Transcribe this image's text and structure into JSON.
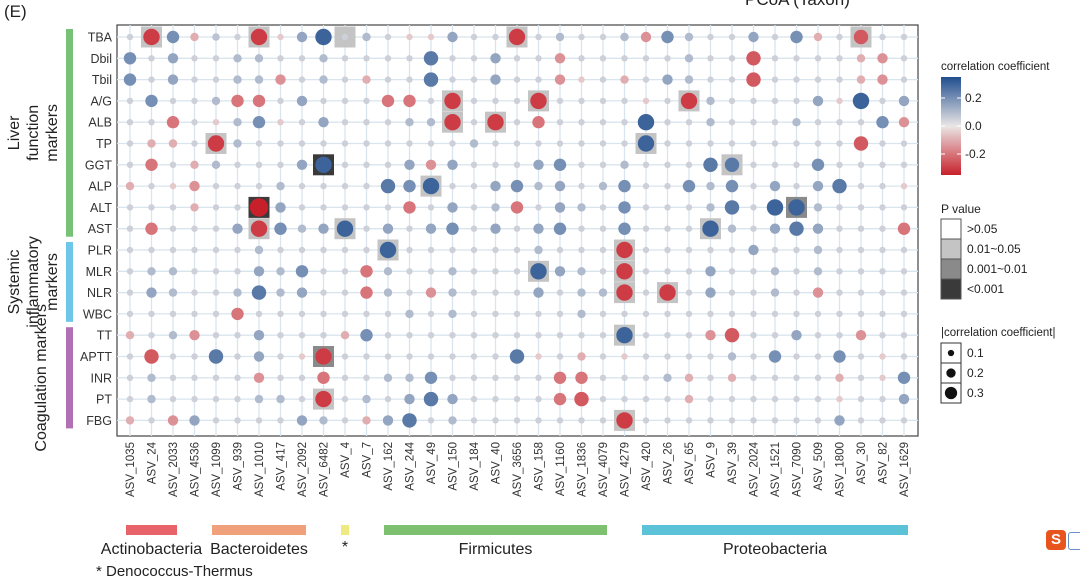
{
  "panel_label": "(E)",
  "corner_text": "PCoA (Taxon)",
  "footnote": "* Denococcus-Thermus",
  "chart_data": {
    "type": "heatmap",
    "rows": [
      "TBA",
      "Dbil",
      "Tbil",
      "A/G",
      "ALB",
      "TP",
      "GGT",
      "ALP",
      "ALT",
      "AST",
      "PLR",
      "MLR",
      "NLR",
      "WBC",
      "TT",
      "APTT",
      "INR",
      "PT",
      "FBG"
    ],
    "cols": [
      "ASV_1035",
      "ASV_24",
      "ASV_2033",
      "ASV_4536",
      "ASV_1099",
      "ASV_939",
      "ASV_1010",
      "ASV_417",
      "ASV_2092",
      "ASV_6482",
      "ASV_4",
      "ASV_7",
      "ASV_162",
      "ASV_244",
      "ASV_49",
      "ASV_150",
      "ASV_184",
      "ASV_40",
      "ASV_3656",
      "ASV_158",
      "ASV_1160",
      "ASV_1836",
      "ASV_4079",
      "ASV_4279",
      "ASV_420",
      "ASV_26",
      "ASV_65",
      "ASV_9",
      "ASV_39",
      "ASV_2024",
      "ASV_1521",
      "ASV_7090",
      "ASV_509",
      "ASV_1800",
      "ASV_30",
      "ASV_82",
      "ASV_1629"
    ],
    "values": [
      [
        0.05,
        -0.3,
        0.2,
        -0.1,
        0.08,
        0.05,
        -0.3,
        -0.05,
        0.15,
        0.3,
        0.05,
        0.1,
        0.05,
        -0.05,
        -0.05,
        0.15,
        0.05,
        0.05,
        -0.3,
        0.05,
        0.1,
        0.05,
        0.05,
        0.1,
        -0.15,
        0.2,
        0.1,
        0.05,
        0.05,
        0.15,
        0.05,
        0.2,
        -0.1,
        0.05,
        -0.25,
        0.05,
        0.05
      ],
      [
        0.2,
        0.05,
        0.15,
        0.05,
        0.05,
        0.1,
        0.1,
        0.05,
        0.05,
        0.1,
        0.05,
        0.05,
        0.05,
        0.05,
        0.25,
        0.05,
        0.05,
        0.15,
        0.05,
        0.05,
        -0.15,
        0.05,
        0.05,
        0.05,
        0.05,
        0.05,
        0.1,
        0.05,
        0.05,
        -0.25,
        0.05,
        0.05,
        0.05,
        0.05,
        -0.1,
        -0.15,
        0.05
      ],
      [
        0.2,
        0.05,
        0.15,
        0.05,
        0.05,
        0.1,
        0.1,
        -0.15,
        0.05,
        0.1,
        0.05,
        -0.1,
        0.05,
        0.05,
        0.25,
        0.05,
        0.05,
        0.15,
        0.05,
        0.05,
        -0.15,
        -0.05,
        0.05,
        -0.1,
        0.05,
        0.15,
        0.1,
        0.05,
        0.05,
        -0.25,
        0.05,
        0.05,
        0.05,
        0.05,
        -0.1,
        -0.15,
        0.05
      ],
      [
        0.05,
        0.2,
        0.05,
        0.05,
        0.1,
        -0.2,
        -0.2,
        0.05,
        0.15,
        0.05,
        0.05,
        0.05,
        -0.2,
        -0.2,
        0.05,
        -0.3,
        0.05,
        0.05,
        0.05,
        -0.3,
        0.05,
        0.05,
        0.05,
        0.05,
        -0.05,
        0.05,
        -0.3,
        0.1,
        0.05,
        0.05,
        0.05,
        0.05,
        0.15,
        -0.05,
        0.3,
        0.05,
        0.15
      ],
      [
        0.05,
        0.05,
        -0.2,
        0.05,
        -0.05,
        0.1,
        0.2,
        -0.05,
        0.05,
        0.15,
        0.05,
        0.05,
        0.05,
        0.1,
        0.1,
        -0.3,
        0.05,
        -0.3,
        0.05,
        -0.2,
        0.05,
        0.05,
        0.05,
        0.05,
        0.3,
        0.05,
        0.05,
        0.1,
        0.05,
        0.05,
        0.05,
        0.1,
        0.05,
        0.05,
        0.05,
        0.2,
        -0.15
      ],
      [
        0.05,
        -0.1,
        -0.1,
        0.05,
        -0.3,
        0.1,
        0.05,
        0.05,
        0.05,
        0.05,
        0.05,
        0.05,
        0.05,
        0.05,
        0.05,
        0.05,
        0.1,
        0.05,
        0.05,
        0.05,
        0.05,
        0.05,
        0.05,
        0.05,
        0.3,
        0.05,
        0.05,
        0.05,
        0.05,
        0.05,
        0.05,
        0.05,
        0.05,
        0.05,
        -0.25,
        0.05,
        0.05
      ],
      [
        0.05,
        -0.2,
        0.05,
        -0.1,
        0.1,
        0.05,
        0.05,
        0.05,
        0.15,
        0.3,
        0.05,
        0.05,
        0.05,
        0.15,
        -0.15,
        0.15,
        0.05,
        0.05,
        0.05,
        0.15,
        0.2,
        0.05,
        0.05,
        0.1,
        0.05,
        0.05,
        0.05,
        0.25,
        0.25,
        0.05,
        0.05,
        0.05,
        0.2,
        0.05,
        0.05,
        0.05,
        0.05
      ],
      [
        -0.1,
        0.05,
        -0.05,
        -0.15,
        0.05,
        0.05,
        0.05,
        0.1,
        0.05,
        0.05,
        0.05,
        0.05,
        0.25,
        0.2,
        0.3,
        0.05,
        0.05,
        0.15,
        0.2,
        0.1,
        0.15,
        0.05,
        0.1,
        0.2,
        0.05,
        0.05,
        0.2,
        0.1,
        0.2,
        0.05,
        0.15,
        0.05,
        0.15,
        0.25,
        0.05,
        0.05,
        -0.05
      ],
      [
        0.05,
        0.05,
        0.05,
        -0.1,
        0.05,
        0.05,
        -0.35,
        0.15,
        0.05,
        0.05,
        0.05,
        0.05,
        0.05,
        -0.2,
        0.05,
        0.15,
        0.05,
        0.1,
        -0.2,
        0.05,
        0.15,
        0.1,
        0.05,
        0.2,
        0.05,
        0.05,
        0.05,
        0.1,
        0.25,
        0.05,
        0.3,
        0.3,
        0.1,
        0.05,
        0.05,
        0.05,
        0.05
      ],
      [
        0.05,
        -0.2,
        0.05,
        0.05,
        0.05,
        0.15,
        -0.3,
        0.2,
        0.1,
        0.15,
        0.3,
        0.05,
        0.15,
        0.05,
        0.15,
        0.2,
        0.05,
        0.15,
        0.05,
        0.15,
        0.2,
        0.05,
        0.05,
        0.2,
        0.05,
        0.05,
        0.05,
        0.3,
        0.1,
        0.05,
        0.15,
        0.25,
        0.15,
        0.05,
        0.05,
        0.05,
        -0.2
      ],
      [
        0.05,
        0.05,
        0.05,
        0.05,
        0.05,
        0.05,
        0.1,
        0.05,
        0.05,
        0.05,
        0.05,
        0.05,
        0.3,
        0.05,
        0.05,
        0.05,
        0.05,
        0.05,
        0.05,
        0.1,
        0.05,
        0.05,
        0.05,
        -0.3,
        0.05,
        0.05,
        0.05,
        0.05,
        0.05,
        0.15,
        0.05,
        0.05,
        0.1,
        0.05,
        0.05,
        0.05,
        0.05
      ],
      [
        0.05,
        0.1,
        0.1,
        0.05,
        0.05,
        0.05,
        0.15,
        0.1,
        0.2,
        0.05,
        0.05,
        -0.2,
        0.1,
        0.05,
        0.05,
        0.1,
        0.05,
        0.05,
        0.05,
        0.3,
        0.15,
        0.1,
        0.05,
        -0.3,
        0.05,
        0.05,
        0.05,
        0.15,
        0.05,
        0.05,
        0.1,
        0.05,
        0.1,
        0.05,
        0.05,
        0.05,
        0.05
      ],
      [
        0.05,
        0.15,
        0.1,
        0.05,
        0.05,
        0.1,
        0.25,
        0.1,
        0.15,
        0.05,
        0.05,
        -0.2,
        0.1,
        0.05,
        -0.15,
        0.1,
        0.05,
        0.05,
        0.05,
        0.15,
        0.05,
        0.1,
        0.1,
        -0.3,
        0.05,
        -0.3,
        0.05,
        0.15,
        0.05,
        0.05,
        0.1,
        0.05,
        -0.15,
        0.05,
        0.05,
        0.05,
        0.05
      ],
      [
        0.05,
        0.05,
        0.05,
        0.05,
        0.05,
        -0.2,
        0.05,
        0.05,
        0.05,
        0.05,
        0.05,
        0.05,
        0.05,
        0.1,
        0.05,
        0.1,
        0.05,
        0.05,
        0.05,
        0.05,
        0.05,
        0.1,
        0.05,
        0.05,
        0.05,
        0.05,
        0.05,
        0.05,
        0.05,
        0.05,
        0.05,
        0.05,
        0.05,
        0.05,
        0.05,
        0.05,
        0.05
      ],
      [
        -0.1,
        0.05,
        0.1,
        -0.15,
        0.05,
        0.05,
        0.15,
        0.05,
        0.05,
        0.05,
        -0.1,
        0.2,
        0.05,
        0.05,
        0.05,
        0.05,
        0.05,
        0.05,
        0.05,
        0.05,
        0.05,
        0.05,
        0.05,
        0.3,
        0.05,
        0.05,
        0.05,
        -0.15,
        -0.25,
        0.05,
        0.05,
        0.15,
        0.05,
        0.05,
        -0.15,
        0.05,
        0.05
      ],
      [
        0.05,
        -0.25,
        0.05,
        0.05,
        0.25,
        0.05,
        0.15,
        0.05,
        -0.05,
        -0.3,
        0.05,
        0.05,
        0.05,
        0.05,
        0.05,
        0.05,
        0.05,
        0.05,
        0.25,
        -0.05,
        0.05,
        -0.1,
        0.05,
        -0.05,
        0.05,
        0.05,
        0.05,
        0.05,
        0.1,
        0.05,
        0.2,
        0.05,
        0.05,
        0.2,
        0.05,
        -0.05,
        0.05
      ],
      [
        0.05,
        0.1,
        0.05,
        0.05,
        0.05,
        0.05,
        -0.15,
        0.05,
        0.05,
        -0.2,
        0.05,
        0.05,
        0.1,
        0.1,
        0.2,
        0.05,
        0.05,
        0.05,
        0.05,
        0.05,
        -0.2,
        -0.2,
        0.05,
        0.05,
        0.05,
        0.1,
        -0.1,
        0.05,
        -0.1,
        0.05,
        0.05,
        0.05,
        0.05,
        -0.1,
        0.05,
        -0.05,
        0.2
      ],
      [
        0.05,
        0.1,
        0.05,
        0.05,
        0.05,
        0.05,
        0.1,
        0.1,
        0.05,
        -0.3,
        0.05,
        0.1,
        0.05,
        0.15,
        0.25,
        0.15,
        0.05,
        0.05,
        0.05,
        0.05,
        -0.2,
        -0.25,
        0.05,
        0.05,
        0.05,
        0.05,
        -0.1,
        0.05,
        0.05,
        0.05,
        0.05,
        0.05,
        0.05,
        -0.05,
        0.05,
        0.05,
        0.15
      ],
      [
        -0.1,
        0.05,
        -0.15,
        0.15,
        0.05,
        0.05,
        0.05,
        0.05,
        0.15,
        0.1,
        0.05,
        -0.1,
        0.15,
        0.25,
        0.05,
        0.1,
        0.05,
        0.05,
        0.05,
        0.05,
        0.05,
        0.05,
        0.05,
        -0.3,
        0.05,
        0.05,
        0.05,
        0.05,
        0.05,
        0.05,
        0.05,
        0.05,
        0.05,
        0.15,
        0.05,
        0.05,
        0.05
      ]
    ],
    "significance": [
      [
        0,
        1,
        0,
        0,
        0,
        0,
        1,
        0,
        0,
        0,
        1,
        0,
        0,
        0,
        0,
        0,
        0,
        0,
        1,
        0,
        0,
        0,
        0,
        0,
        0,
        0,
        0,
        0,
        0,
        0,
        0,
        0,
        0,
        0,
        1,
        0,
        0
      ],
      [],
      [],
      [
        0,
        0,
        0,
        0,
        0,
        0,
        0,
        0,
        0,
        0,
        0,
        0,
        0,
        0,
        0,
        1,
        0,
        0,
        0,
        1,
        0,
        0,
        0,
        0,
        0,
        0,
        1,
        0,
        0,
        0,
        0,
        0,
        0,
        0,
        0,
        0,
        0
      ],
      [
        0,
        0,
        0,
        0,
        0,
        0,
        0,
        0,
        0,
        0,
        0,
        0,
        0,
        0,
        0,
        1,
        0,
        1,
        0,
        0,
        0,
        0,
        0,
        0,
        0,
        0,
        0,
        0,
        0,
        0,
        0,
        0,
        0,
        0,
        0,
        0,
        0
      ],
      [
        0,
        0,
        0,
        0,
        1,
        0,
        0,
        0,
        0,
        0,
        0,
        0,
        0,
        0,
        0,
        0,
        0,
        0,
        0,
        0,
        0,
        0,
        0,
        0,
        1,
        0,
        0,
        0,
        0,
        0,
        0,
        0,
        0,
        0,
        0,
        0,
        0
      ],
      [
        0,
        0,
        0,
        0,
        0,
        0,
        0,
        0,
        0,
        3,
        0,
        0,
        0,
        0,
        0,
        0,
        0,
        0,
        0,
        0,
        0,
        0,
        0,
        0,
        0,
        0,
        0,
        0,
        1,
        0,
        0,
        0,
        0,
        0,
        0,
        0,
        0
      ],
      [
        0,
        0,
        0,
        0,
        0,
        0,
        0,
        0,
        0,
        0,
        0,
        0,
        0,
        0,
        1,
        0,
        0,
        0,
        0,
        0,
        0,
        0,
        0,
        0,
        0,
        0,
        0,
        0,
        0,
        0,
        0,
        0,
        0,
        0,
        0,
        0,
        0
      ],
      [
        0,
        0,
        0,
        0,
        0,
        0,
        3,
        0,
        0,
        0,
        0,
        0,
        0,
        0,
        0,
        0,
        0,
        0,
        0,
        0,
        0,
        0,
        0,
        0,
        0,
        0,
        0,
        0,
        0,
        0,
        0,
        2,
        0,
        0,
        0,
        0,
        0
      ],
      [
        0,
        0,
        0,
        0,
        0,
        0,
        1,
        0,
        0,
        0,
        1,
        0,
        0,
        0,
        0,
        0,
        0,
        0,
        0,
        0,
        0,
        0,
        0,
        0,
        0,
        0,
        0,
        1,
        0,
        0,
        0,
        0,
        0,
        0,
        0,
        0,
        0
      ],
      [
        0,
        0,
        0,
        0,
        0,
        0,
        0,
        0,
        0,
        0,
        0,
        0,
        1,
        0,
        0,
        0,
        0,
        0,
        0,
        0,
        0,
        0,
        0,
        1,
        0,
        0,
        0,
        0,
        0,
        0,
        0,
        0,
        0,
        0,
        0,
        0,
        0
      ],
      [
        0,
        0,
        0,
        0,
        0,
        0,
        0,
        0,
        0,
        0,
        0,
        0,
        0,
        0,
        0,
        0,
        0,
        0,
        0,
        1,
        0,
        0,
        0,
        1,
        0,
        0,
        0,
        0,
        0,
        0,
        0,
        0,
        0,
        0,
        0,
        0,
        0
      ],
      [
        0,
        0,
        0,
        0,
        0,
        0,
        0,
        0,
        0,
        0,
        0,
        0,
        0,
        0,
        0,
        0,
        0,
        0,
        0,
        0,
        0,
        0,
        0,
        1,
        0,
        1,
        0,
        0,
        0,
        0,
        0,
        0,
        0,
        0,
        0,
        0,
        0
      ],
      [],
      [
        0,
        0,
        0,
        0,
        0,
        0,
        0,
        0,
        0,
        0,
        0,
        0,
        0,
        0,
        0,
        0,
        0,
        0,
        0,
        0,
        0,
        0,
        0,
        1,
        0,
        0,
        0,
        0,
        0,
        0,
        0,
        0,
        0,
        0,
        0,
        0,
        0
      ],
      [
        0,
        0,
        0,
        0,
        0,
        0,
        0,
        0,
        0,
        2,
        0,
        0,
        0,
        0,
        0,
        0,
        0,
        0,
        0,
        0,
        0,
        0,
        0,
        0,
        0,
        0,
        0,
        0,
        0,
        0,
        0,
        0,
        0,
        0,
        0,
        0,
        0
      ],
      [],
      [
        0,
        0,
        0,
        0,
        0,
        0,
        0,
        0,
        0,
        1,
        0,
        0,
        0,
        0,
        0,
        0,
        0,
        0,
        0,
        0,
        0,
        0,
        0,
        0,
        0,
        0,
        0,
        0,
        0,
        0,
        0,
        0,
        0,
        0,
        0,
        0,
        0
      ],
      [
        0,
        0,
        0,
        0,
        0,
        0,
        0,
        0,
        0,
        0,
        0,
        0,
        0,
        0,
        0,
        0,
        0,
        0,
        0,
        0,
        0,
        0,
        0,
        1,
        0,
        0,
        0,
        0,
        0,
        0,
        0,
        0,
        0,
        0,
        0,
        0,
        0
      ]
    ],
    "row_groups": [
      {
        "label": "Liver function markers",
        "start": 0,
        "end": 9,
        "color": "#78c278"
      },
      {
        "label": "Systemic inflammatory markers",
        "start": 10,
        "end": 13,
        "color": "#6ec6e8"
      },
      {
        "label": "Coagulation markers",
        "start": 14,
        "end": 18,
        "color": "#b36fb3"
      }
    ],
    "col_groups": [
      {
        "label": "Actinobacteria",
        "start": 0,
        "end": 2,
        "color": "#e8626a"
      },
      {
        "label": "Bacteroidetes",
        "start": 4,
        "end": 8,
        "color": "#f0a07a"
      },
      {
        "label": "*",
        "start": 10,
        "end": 10,
        "color": "#eeea80"
      },
      {
        "label": "Firmicutes",
        "start": 12,
        "end": 22,
        "color": "#7cc070"
      },
      {
        "label": "Proteobacteria",
        "start": 24,
        "end": 36,
        "color": "#5cc2d8"
      }
    ],
    "color_scale": {
      "title": "correlation coefficient",
      "ticks": [
        "0.2",
        "0.0",
        "-0.2"
      ],
      "tick_values": [
        0.2,
        0.0,
        -0.2
      ],
      "range": [
        -0.35,
        0.35
      ],
      "low": "#c8202a",
      "mid": "#eae6e6",
      "high": "#1f4e8e"
    },
    "p_legend": {
      "title": "P value",
      "items": [
        {
          "label": ">0.05",
          "color": "#ffffff"
        },
        {
          "label": "0.01~0.05",
          "color": "#c4c4c4"
        },
        {
          "label": "0.001~0.01",
          "color": "#8a8a8a"
        },
        {
          "label": "<0.001",
          "color": "#3a3a3a"
        }
      ]
    },
    "size_legend": {
      "title": "|correlation coefficient|",
      "items": [
        {
          "label": "0.1",
          "value": 0.1
        },
        {
          "label": "0.2",
          "value": 0.2
        },
        {
          "label": "0.3",
          "value": 0.3
        }
      ]
    }
  }
}
